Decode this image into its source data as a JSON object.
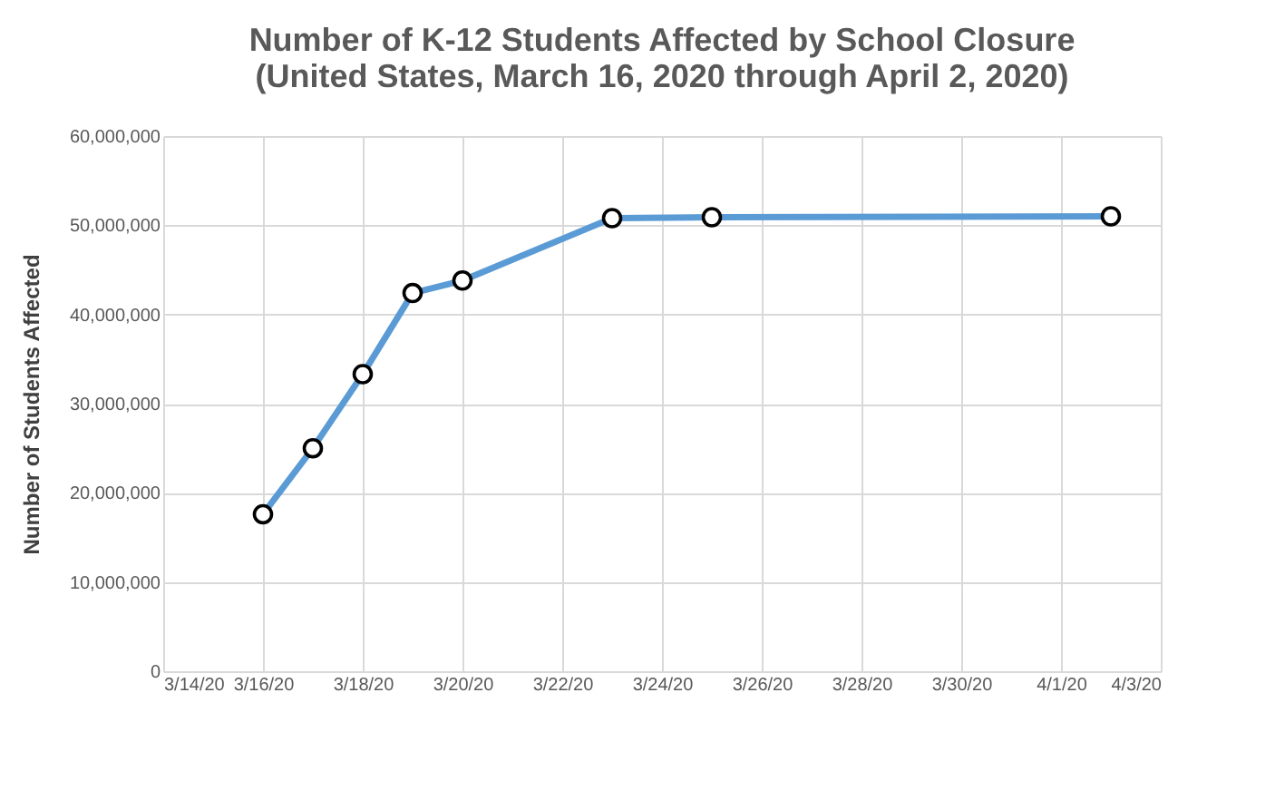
{
  "chart_data": {
    "type": "line",
    "title": [
      "Number of K-12 Students Affected by School Closure",
      "(United States, March 16, 2020 through April 2, 2020)"
    ],
    "ylabel": "Number of Students Affected",
    "x": [
      "2020-03-16",
      "2020-03-17",
      "2020-03-18",
      "2020-03-19",
      "2020-03-20",
      "2020-03-23",
      "2020-03-25",
      "2020-04-02"
    ],
    "series": [
      {
        "color": "#5b9bd5",
        "values": [
          17600000,
          25000000,
          33300000,
          42400000,
          43800000,
          50800000,
          50900000,
          51000000
        ]
      }
    ],
    "xlim": [
      "2020-03-14",
      "2020-04-03"
    ],
    "xticks": [
      {
        "value": "2020-03-14",
        "label": "3/14/20"
      },
      {
        "value": "2020-03-16",
        "label": "3/16/20"
      },
      {
        "value": "2020-03-18",
        "label": "3/18/20"
      },
      {
        "value": "2020-03-20",
        "label": "3/20/20"
      },
      {
        "value": "2020-03-22",
        "label": "3/22/20"
      },
      {
        "value": "2020-03-24",
        "label": "3/24/20"
      },
      {
        "value": "2020-03-26",
        "label": "3/26/20"
      },
      {
        "value": "2020-03-28",
        "label": "3/28/20"
      },
      {
        "value": "2020-03-30",
        "label": "3/30/20"
      },
      {
        "value": "2020-04-01",
        "label": "4/1/20"
      },
      {
        "value": "2020-04-03",
        "label": "4/3/20"
      }
    ],
    "ylim": [
      0,
      60000000
    ],
    "yticks": [
      0,
      {
        "value": 10000000,
        "label": "10,000,000"
      },
      {
        "value": 20000000,
        "label": "20,000,000"
      },
      {
        "value": 30000000,
        "label": "30,000,000"
      },
      {
        "value": 40000000,
        "label": "40,000,000"
      },
      {
        "value": 50000000,
        "label": "50,000,000"
      },
      {
        "value": 60000000,
        "label": "60,000,000"
      }
    ],
    "grid": true,
    "marker": "circle",
    "line_style": "solid"
  }
}
